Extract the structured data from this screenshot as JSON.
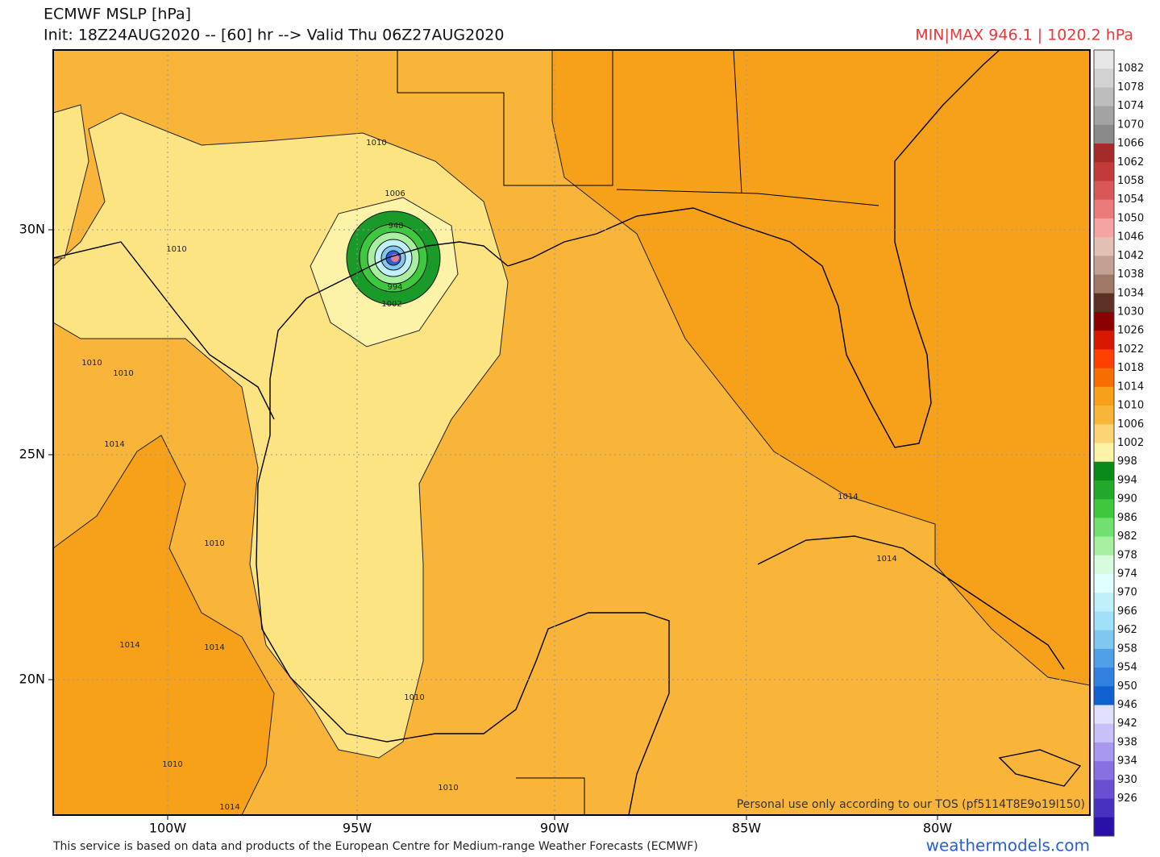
{
  "header": {
    "title": "ECMWF MSLP [hPa]",
    "subtitle": "Init: 18Z24AUG2020 -- [60] hr --> Valid Thu 06Z27AUG2020",
    "minmax": "MIN|MAX 946.1 | 1020.2 hPa"
  },
  "axes": {
    "lat_labels": [
      "30N",
      "25N",
      "20N"
    ],
    "lon_labels": [
      "100W",
      "95W",
      "90W",
      "85W",
      "80W"
    ]
  },
  "contour_labels": [
    1010,
    1006,
    948,
    994,
    1002,
    1010,
    1010,
    1010,
    1014,
    1010,
    1014,
    1014,
    1010,
    1010,
    1010,
    1014,
    1014,
    1014
  ],
  "colorbar": {
    "labels": [
      1082,
      1078,
      1074,
      1070,
      1066,
      1062,
      1058,
      1054,
      1050,
      1046,
      1042,
      1038,
      1034,
      1030,
      1026,
      1022,
      1018,
      1014,
      1010,
      1006,
      1002,
      998,
      994,
      990,
      986,
      982,
      978,
      974,
      970,
      966,
      962,
      958,
      954,
      950,
      946,
      942,
      938,
      934,
      930,
      926
    ],
    "colors": [
      "#e6e6e6",
      "#d2d2d2",
      "#bdbdbd",
      "#a3a3a3",
      "#8a8a8a",
      "#a52a2a",
      "#c23a3a",
      "#d95757",
      "#eb7a7a",
      "#f5a3a3",
      "#e2c0b4",
      "#c4a094",
      "#a07868",
      "#5c3024",
      "#8b0000",
      "#d81800",
      "#ff4000",
      "#f76e00",
      "#f7a01a",
      "#f9b53a",
      "#fbd575",
      "#fdf3a8",
      "#0a8a1a",
      "#22a82a",
      "#3ec83e",
      "#70e070",
      "#a8f0a0",
      "#d8fbe0",
      "#e0ffff",
      "#c0f0f8",
      "#a0e0f8",
      "#80c8f0",
      "#50a0e8",
      "#3080e0",
      "#1060d0",
      "#e0e0ff",
      "#c8c0f8",
      "#a898f0",
      "#8870e0",
      "#6850d0",
      "#4830c0",
      "#2a10a8"
    ]
  },
  "notice": "Personal use only according to our TOS (pf5114T8E9o19I150)",
  "footer": {
    "credit": "This service is based on data and products of the European Centre for Medium-range Weather Forecasts (ECMWF)",
    "site": "weathermodels.com"
  }
}
